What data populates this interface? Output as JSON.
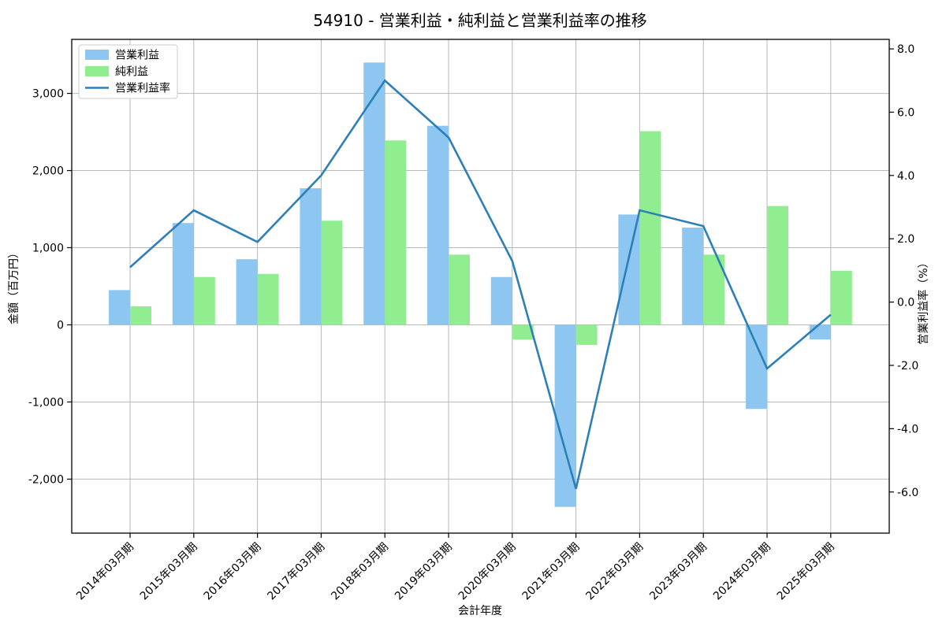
{
  "chart_data": {
    "type": "bar+line",
    "title": "54910 - 営業利益・純利益と営業利益率の推移",
    "xlabel": "会計年度",
    "ylabel_left": "金額（百万円）",
    "ylabel_right": "営業利益率（%）",
    "categories": [
      "2014年03月期",
      "2015年03月期",
      "2016年03月期",
      "2017年03月期",
      "2018年03月期",
      "2019年03月期",
      "2020年03月期",
      "2021年03月期",
      "2022年03月期",
      "2023年03月期",
      "2024年03月期",
      "2025年03月期"
    ],
    "series": [
      {
        "name": "営業利益",
        "type": "bar",
        "axis": "left",
        "color": "#8dc6f0",
        "values": [
          450,
          1320,
          850,
          1770,
          3400,
          2580,
          620,
          -2360,
          1430,
          1260,
          -1090,
          -190
        ]
      },
      {
        "name": "純利益",
        "type": "bar",
        "axis": "left",
        "color": "#90ee90",
        "values": [
          240,
          620,
          660,
          1350,
          2390,
          910,
          -190,
          -260,
          2510,
          910,
          1540,
          700
        ]
      },
      {
        "name": "営業利益率",
        "type": "line",
        "axis": "right",
        "color": "#2d7fb8",
        "values": [
          1.1,
          2.9,
          1.9,
          4.0,
          7.0,
          5.2,
          1.3,
          -5.9,
          2.9,
          2.4,
          -2.1,
          -0.4
        ]
      }
    ],
    "ylim_left": [
      -2700,
      3700
    ],
    "yticks_left": [
      3000,
      2000,
      1000,
      0,
      -1000,
      -2000
    ],
    "ylim_right": [
      -7.3,
      8.3
    ],
    "yticks_right": [
      8.0,
      6.0,
      4.0,
      2.0,
      0.0,
      -2.0,
      -4.0,
      -6.0
    ],
    "grid": true,
    "legend_position": "upper left",
    "colors": {
      "grid": "#b8b8b8",
      "axes": "#000000",
      "legend_border": "#cccccc",
      "background": "#ffffff"
    }
  }
}
